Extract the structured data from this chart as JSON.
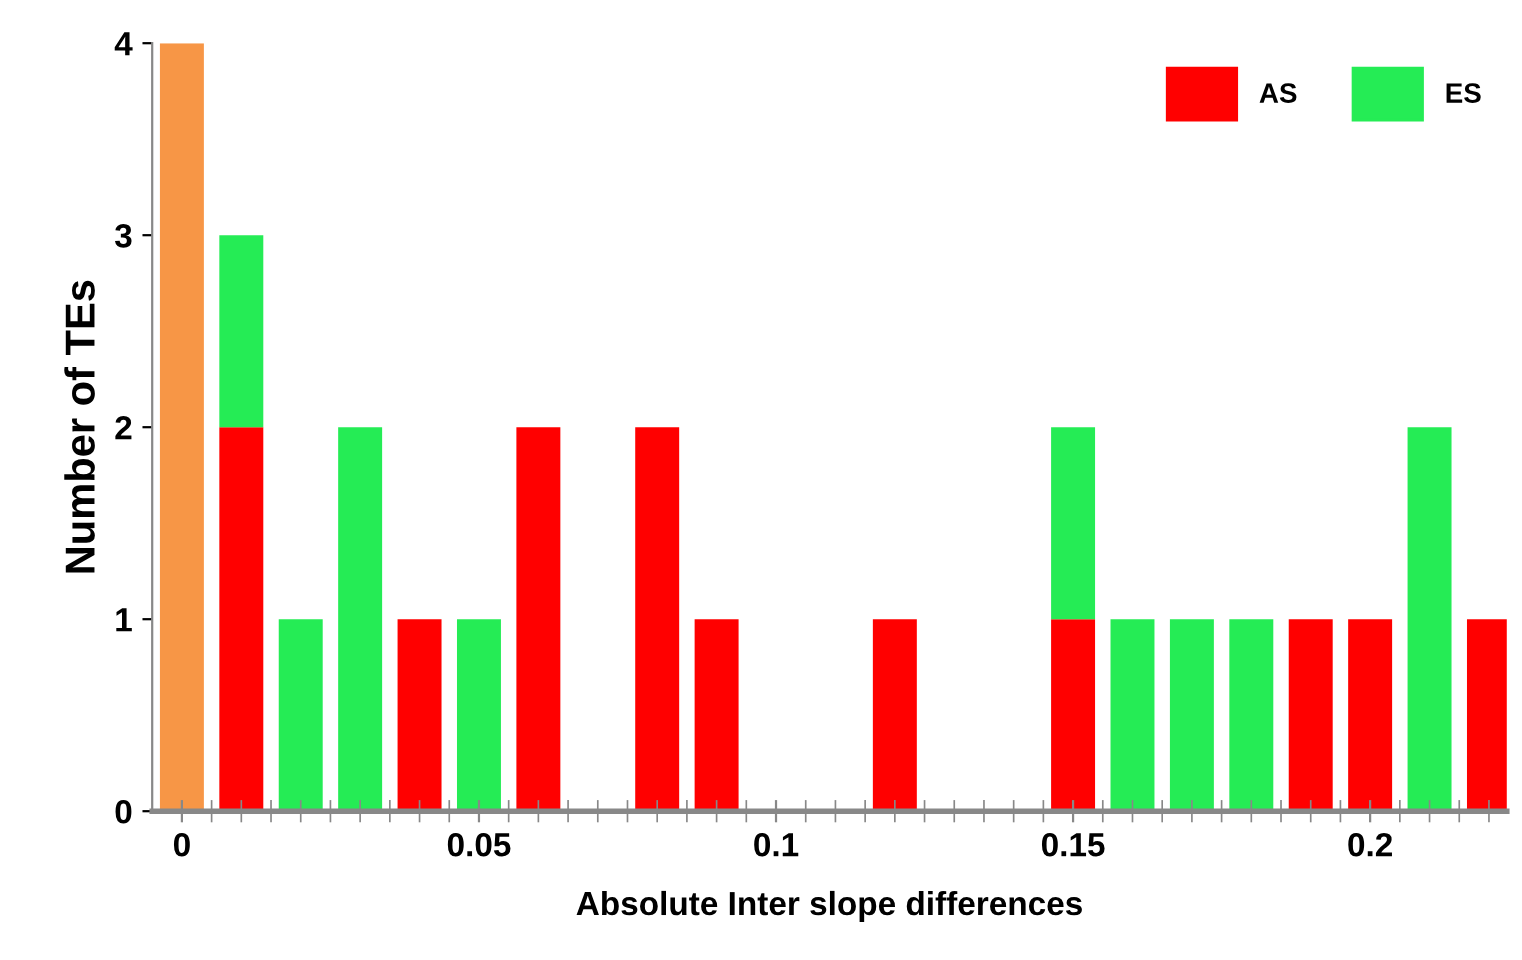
{
  "chart_data": {
    "type": "bar",
    "stacked": true,
    "xlabel": "Absolute Inter slope differences",
    "ylabel": "Number of TEs",
    "x": [
      0,
      0.01,
      0.02,
      0.03,
      0.04,
      0.05,
      0.06,
      0.07,
      0.08,
      0.09,
      0.1,
      0.11,
      0.12,
      0.13,
      0.14,
      0.15,
      0.16,
      0.17,
      0.18,
      0.19,
      0.2,
      0.21,
      0.22
    ],
    "series": [
      {
        "color": "#f79646",
        "values": [
          4,
          null,
          null,
          null,
          null,
          null,
          null,
          null,
          null,
          null,
          null,
          null,
          null,
          null,
          null,
          null,
          null,
          null,
          null,
          null,
          null,
          null,
          null
        ]
      },
      {
        "name": "AS",
        "color": "#ff0000",
        "values": [
          null,
          2,
          null,
          null,
          1,
          null,
          2,
          null,
          2,
          1,
          null,
          null,
          1,
          null,
          null,
          1,
          null,
          null,
          null,
          1,
          1,
          null,
          1
        ]
      },
      {
        "name": "ES",
        "color": "#25ec55",
        "values": [
          null,
          1,
          1,
          2,
          null,
          1,
          null,
          null,
          null,
          null,
          null,
          null,
          null,
          null,
          null,
          1,
          1,
          1,
          1,
          null,
          null,
          2,
          null
        ]
      }
    ],
    "xlim": [
      -0.005,
      0.223
    ],
    "xticks": [
      0,
      0.05,
      0.1,
      0.15,
      0.2
    ],
    "ylim": [
      0,
      4
    ],
    "yticks": [
      0,
      1,
      2,
      3,
      4
    ],
    "grid": false,
    "legend": "top right"
  }
}
